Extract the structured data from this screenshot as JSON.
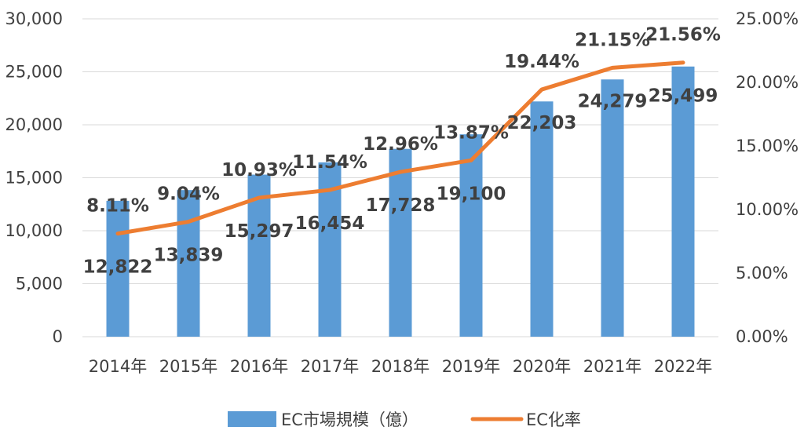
{
  "chart_data": {
    "type": "bar",
    "categories": [
      "2014年",
      "2015年",
      "2016年",
      "2017年",
      "2018年",
      "2019年",
      "2020年",
      "2021年",
      "2022年"
    ],
    "series": [
      {
        "name": "EC市場規模（億）",
        "type": "bar",
        "axis": "left",
        "color": "#5b9bd5",
        "values": [
          12822,
          13839,
          15297,
          16454,
          17728,
          19100,
          22203,
          24279,
          25499
        ],
        "labels": [
          "12,822",
          "13,839",
          "15,297",
          "16,454",
          "17,728",
          "19,100",
          "22,203",
          "24,279",
          "25,499"
        ]
      },
      {
        "name": "EC化率",
        "type": "line",
        "axis": "right",
        "color": "#ed7d31",
        "values": [
          8.11,
          9.04,
          10.93,
          11.54,
          12.96,
          13.87,
          19.44,
          21.15,
          21.56
        ],
        "labels": [
          "8.11%",
          "9.04%",
          "10.93%",
          "11.54%",
          "12.96%",
          "13.87%",
          "19.44%",
          "21.15%",
          "21.56%"
        ]
      }
    ],
    "y_left": {
      "ylim": [
        0,
        30000
      ],
      "ticks": [
        0,
        5000,
        10000,
        15000,
        20000,
        25000,
        30000
      ],
      "tick_labels": [
        "0",
        "5,000",
        "10,000",
        "15,000",
        "20,000",
        "25,000",
        "30,000"
      ]
    },
    "y_right": {
      "ylim": [
        0,
        25
      ],
      "ticks": [
        0,
        5,
        10,
        15,
        20,
        25
      ],
      "tick_labels": [
        "0.00%",
        "5.00%",
        "10.00%",
        "15.00%",
        "20.00%",
        "25.00%"
      ]
    },
    "grid": true,
    "legend_position": "bottom",
    "legend": [
      {
        "label": "EC市場規模（億）",
        "kind": "bar",
        "color": "#5b9bd5"
      },
      {
        "label": "EC化率",
        "kind": "line",
        "color": "#ed7d31"
      }
    ]
  }
}
